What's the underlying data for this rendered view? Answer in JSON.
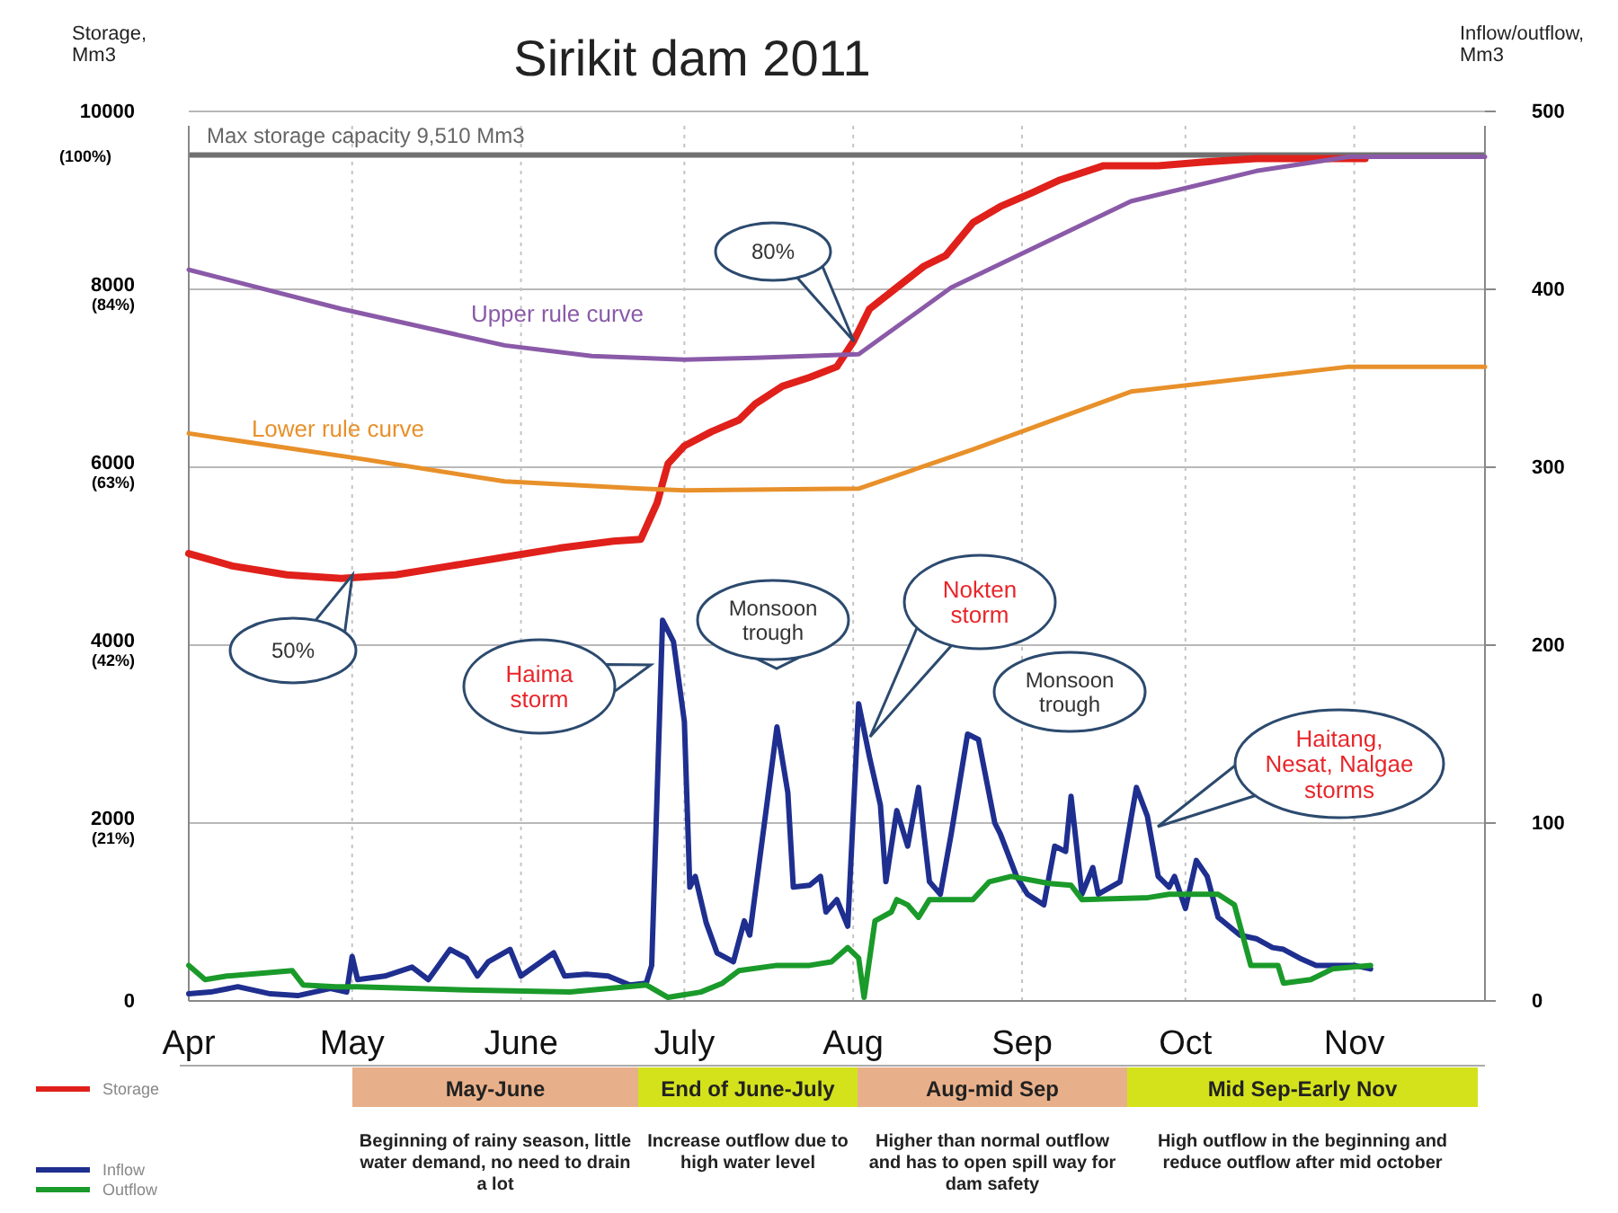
{
  "chart_data": {
    "type": "line",
    "title": "Sirikit dam 2011",
    "ylabel": "Storage, Mm3",
    "y2label": "Inflow/outflow, Mm3",
    "xlim": [
      "--04-01",
      "--11-25"
    ],
    "xticks": [
      {
        "value": "--04-01",
        "label": "Apr"
      },
      {
        "value": "--05-01",
        "label": "May"
      },
      {
        "value": "--06-01",
        "label": "June"
      },
      {
        "value": "--07-01",
        "label": "July"
      },
      {
        "value": "--08-01",
        "label": "Aug"
      },
      {
        "value": "--09-01",
        "label": "Sep"
      },
      {
        "value": "--10-01",
        "label": "Oct"
      },
      {
        "value": "--11-01",
        "label": "Nov"
      }
    ],
    "ylim": [
      0,
      10000
    ],
    "yticks": [
      0,
      {
        "value": 2000,
        "label": "2000\n(21%)"
      },
      {
        "value": 4000,
        "label": "4000\n(42%)"
      },
      {
        "value": 6000,
        "label": "6000\n(63%)"
      },
      {
        "value": 8000,
        "label": "8000\n(84%)"
      },
      10000
    ],
    "y2lim": [
      0,
      500
    ],
    "y2ticks": [
      0,
      100,
      200,
      300,
      400,
      500
    ],
    "grid": true,
    "legend": "bottom left",
    "ref_lines": [
      {
        "axis": "y",
        "value": 9510,
        "label": "Max storage capacity 9,510 Mm3",
        "color": "#707070"
      }
    ],
    "annotations": [
      "80%",
      "50%",
      "Haima storm",
      "Monsoon trough",
      "Nokten storm",
      "Monsoon trough",
      "Haitang, Nesat, Nalgae storms",
      "(100%)",
      "May-June",
      "Beginning of rainy season, little water demand, no need to drain a lot",
      "End of June-July",
      "Increase outflow due to high water level",
      "Aug-mid Sep",
      "Higher than normal outflow and has to open spill way for dam safety",
      "Mid Sep-Early Nov",
      "High outflow in the beginning and reduce outflow after mid october"
    ],
    "series": [
      {
        "name": "Storage",
        "color": "#e0201b",
        "x": [
          "--04-01",
          "--04-09",
          "--04-19",
          "--04-29",
          "--05-09",
          "--05-19",
          "--05-29",
          "--06-08",
          "--06-18",
          "--06-23",
          "--06-26",
          "--06-28",
          "--07-01",
          "--07-06",
          "--07-11",
          "--07-14",
          "--07-19",
          "--07-24",
          "--07-29",
          "--08-01",
          "--08-04",
          "--08-09",
          "--08-14",
          "--08-18",
          "--08-23",
          "--08-28",
          "--09-03",
          "--09-08",
          "--09-16",
          "--09-26",
          "--10-04",
          "--10-14",
          "--10-24",
          "--11-03"
        ],
        "values": [
          5030,
          4890,
          4790,
          4750,
          4790,
          4890,
          4990,
          5090,
          5170,
          5190,
          5600,
          6040,
          6240,
          6400,
          6530,
          6710,
          6910,
          7010,
          7130,
          7410,
          7780,
          8020,
          8260,
          8380,
          8750,
          8930,
          9090,
          9230,
          9390,
          9390,
          9430,
          9470,
          9470,
          9470
        ]
      },
      {
        "name": "Inflow",
        "color": "#1f2f8f",
        "axis": "y2",
        "x": [
          "--04-01",
          "--04-05",
          "--04-10",
          "--04-16",
          "--04-21",
          "--04-27",
          "--04-30",
          "--05-01",
          "--05-02",
          "--05-07",
          "--05-12",
          "--05-15",
          "--05-19",
          "--05-22",
          "--05-24",
          "--05-26",
          "--05-30",
          "--06-01",
          "--06-07",
          "--06-09",
          "--06-13",
          "--06-17",
          "--06-21",
          "--06-24",
          "--06-25",
          "--06-27",
          "--06-29",
          "--07-01",
          "--07-02",
          "--07-03",
          "--07-05",
          "--07-07",
          "--07-10",
          "--07-12",
          "--07-13",
          "--07-16",
          "--07-18",
          "--07-20",
          "--07-21",
          "--07-24",
          "--07-26",
          "--07-27",
          "--07-29",
          "--07-31",
          "--08-02",
          "--08-04",
          "--08-06",
          "--08-07",
          "--08-09",
          "--08-11",
          "--08-13",
          "--08-15",
          "--08-17",
          "--08-19",
          "--08-22",
          "--08-24",
          "--08-27",
          "--08-28",
          "--08-31",
          "--09-02",
          "--09-05",
          "--09-07",
          "--09-09",
          "--09-10",
          "--09-12",
          "--09-14",
          "--09-15",
          "--09-19",
          "--09-22",
          "--09-24",
          "--09-26",
          "--09-28",
          "--09-29",
          "--10-01",
          "--10-03",
          "--10-05",
          "--10-07",
          "--10-11",
          "--10-14",
          "--10-17",
          "--10-19",
          "--10-22",
          "--10-25",
          "--10-29",
          "--11-01",
          "--11-04"
        ],
        "values": [
          4,
          5,
          8,
          4,
          3,
          7,
          5,
          25,
          12,
          14,
          19,
          12,
          29,
          24,
          14,
          22,
          29,
          14,
          27,
          14,
          15,
          14,
          9,
          10,
          20,
          214,
          202,
          157,
          64,
          70,
          44,
          27,
          22,
          45,
          37,
          107,
          154,
          117,
          64,
          65,
          70,
          50,
          57,
          42,
          167,
          137,
          110,
          67,
          107,
          87,
          120,
          67,
          60,
          94,
          150,
          147,
          100,
          94,
          70,
          60,
          54,
          87,
          84,
          115,
          60,
          75,
          60,
          67,
          120,
          104,
          70,
          64,
          70,
          52,
          79,
          70,
          47,
          37,
          35,
          30,
          29,
          24,
          20,
          20,
          20,
          18
        ]
      },
      {
        "name": "Outflow",
        "color": "#1a9a2a",
        "axis": "y2",
        "x": [
          "--04-01",
          "--04-04",
          "--04-08",
          "--04-20",
          "--04-22",
          "--04-28",
          "--05-02",
          "--05-24",
          "--06-10",
          "--06-24",
          "--06-28",
          "--07-04",
          "--07-08",
          "--07-11",
          "--07-18",
          "--07-24",
          "--07-28",
          "--07-31",
          "--08-02",
          "--08-03",
          "--08-05",
          "--08-08",
          "--08-09",
          "--08-11",
          "--08-13",
          "--08-15",
          "--08-23",
          "--08-26",
          "--08-30",
          "--09-06",
          "--09-10",
          "--09-12",
          "--09-24",
          "--09-28",
          "--10-07",
          "--10-10",
          "--10-13",
          "--10-18",
          "--10-19",
          "--10-24",
          "--10-28",
          "--11-04"
        ],
        "values": [
          20,
          12,
          14,
          17,
          9,
          8,
          8,
          6,
          5,
          9,
          2,
          5,
          10,
          17,
          20,
          20,
          22,
          30,
          24,
          2,
          45,
          50,
          57,
          54,
          47,
          57,
          57,
          67,
          70,
          66,
          65,
          57,
          58,
          60,
          60,
          54,
          20,
          20,
          10,
          12,
          18,
          20
        ]
      },
      {
        "name": "Upper rule curve",
        "color": "#8a5aa8",
        "x": [
          "--04-01",
          "--04-29",
          "--05-29",
          "--06-14",
          "--07-01",
          "--07-14",
          "--08-02",
          "--08-19",
          "--09-21",
          "--10-14",
          "--10-31",
          "--11-25"
        ],
        "values": [
          8220,
          7780,
          7370,
          7250,
          7210,
          7230,
          7270,
          8020,
          8990,
          9330,
          9490,
          9490
        ]
      },
      {
        "name": "Lower rule curve",
        "color": "#e8902a",
        "x": [
          "--04-01",
          "--05-02",
          "--05-29",
          "--06-23",
          "--07-01",
          "--08-02",
          "--08-23",
          "--09-21",
          "--10-31",
          "--11-25"
        ],
        "values": [
          6380,
          6100,
          5840,
          5760,
          5740,
          5760,
          6200,
          6850,
          7130,
          7130
        ]
      }
    ]
  }
}
